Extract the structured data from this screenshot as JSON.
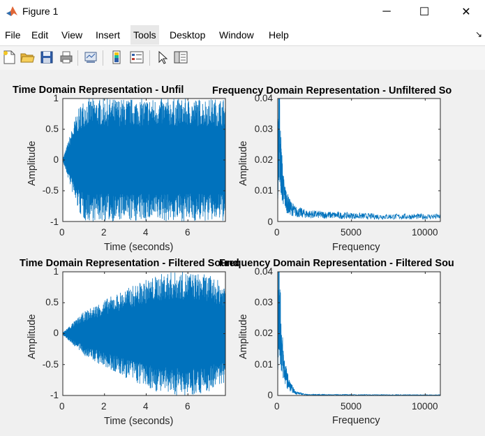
{
  "window": {
    "title": "Figure 1",
    "minimize_label": "─",
    "maximize_label": "☐",
    "close_label": "✕"
  },
  "menu": {
    "items": [
      {
        "label": "File"
      },
      {
        "label": "Edit"
      },
      {
        "label": "View"
      },
      {
        "label": "Insert"
      },
      {
        "label": "Tools"
      },
      {
        "label": "Desktop"
      },
      {
        "label": "Window"
      },
      {
        "label": "Help"
      }
    ],
    "dock_arrow": "↘"
  },
  "toolbar": {
    "icons": [
      "new-figure-icon",
      "open-file-icon",
      "save-icon",
      "print-icon",
      "link-plot-icon",
      "colorbar-icon",
      "legend-icon",
      "pointer-icon",
      "property-inspector-icon"
    ]
  },
  "colors": {
    "line": "#0072bd",
    "window_bg": "#f0f0f0"
  },
  "chart_data": [
    {
      "type": "line",
      "title": "Time Domain Representation - Unfil",
      "xlabel": "Time (seconds)",
      "ylabel": "Amplitude",
      "xlim": [
        0,
        7.8
      ],
      "ylim": [
        -1,
        1
      ],
      "xticks": [
        "0",
        "2",
        "4",
        "6"
      ],
      "yticks": [
        "1",
        "0.5",
        "0",
        "-0.5",
        "-1"
      ],
      "envelope": {
        "x": [
          0,
          0.3,
          0.6,
          0.9,
          1.1,
          7.8
        ],
        "amplitude": [
          0.02,
          0.35,
          0.7,
          0.95,
          1.0,
          1.0
        ]
      }
    },
    {
      "type": "line",
      "title": "Frequency Domain Representation - Unfiltered So",
      "xlabel": "Frequency",
      "ylabel": "Amplitude",
      "xlim": [
        0,
        11025
      ],
      "ylim": [
        0,
        0.04
      ],
      "xticks": [
        "0",
        "5000",
        "10000"
      ],
      "yticks": [
        "0.04",
        "0.03",
        "0.02",
        "0.01",
        "0"
      ],
      "envelope": {
        "x": [
          0,
          50,
          100,
          150,
          250,
          400,
          600,
          800,
          1200,
          2000,
          4000,
          7000,
          11025
        ],
        "amplitude": [
          0.018,
          0.035,
          0.039,
          0.03,
          0.02,
          0.012,
          0.008,
          0.006,
          0.004,
          0.003,
          0.0025,
          0.002,
          0.002
        ]
      }
    },
    {
      "type": "line",
      "title": "Time Domain Representation - Filtered Sound",
      "xlabel": "Time (seconds)",
      "ylabel": "Amplitude",
      "xlim": [
        0,
        7.8
      ],
      "ylim": [
        -1,
        1
      ],
      "xticks": [
        "0",
        "2",
        "4",
        "6"
      ],
      "yticks": [
        "1",
        "0.5",
        "0",
        "-0.5",
        "-1"
      ],
      "envelope": {
        "x": [
          0,
          1,
          2,
          3,
          4,
          5,
          6,
          7,
          7.8
        ],
        "amplitude": [
          0.02,
          0.35,
          0.55,
          0.72,
          0.88,
          1.0,
          1.0,
          0.95,
          0.8
        ]
      }
    },
    {
      "type": "line",
      "title": "Frequency Domain Representation - Filtered Sou",
      "xlabel": "Frequency",
      "ylabel": "Amplitude",
      "xlim": [
        0,
        11025
      ],
      "ylim": [
        0,
        0.04
      ],
      "xticks": [
        "0",
        "5000",
        "10000"
      ],
      "yticks": [
        "0.04",
        "0.03",
        "0.02",
        "0.01",
        "0"
      ],
      "envelope": {
        "x": [
          0,
          50,
          100,
          150,
          250,
          400,
          600,
          800,
          1000,
          1200,
          1500,
          2000,
          11025
        ],
        "amplitude": [
          0.018,
          0.035,
          0.039,
          0.03,
          0.02,
          0.012,
          0.007,
          0.004,
          0.0025,
          0.0012,
          0.0008,
          0.0003,
          0.0002
        ]
      }
    }
  ]
}
